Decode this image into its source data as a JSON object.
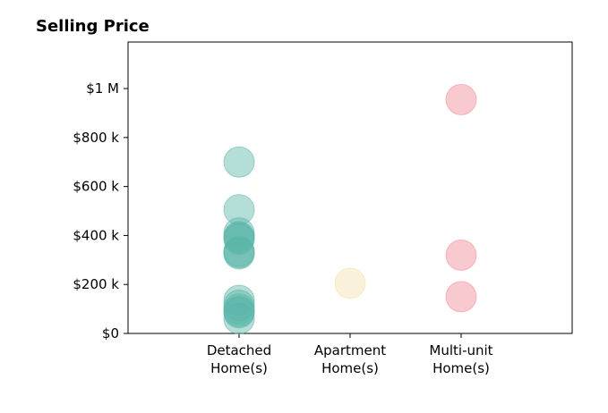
{
  "chart_data": {
    "type": "scatter",
    "title": "Selling Price",
    "xlabel": "",
    "ylabel": "",
    "categories": [
      [
        "Detached",
        "Home(s)"
      ],
      [
        "Apartment",
        "Home(s)"
      ],
      [
        "Multi-unit",
        "Home(s)"
      ]
    ],
    "xlim": [
      -1,
      3
    ],
    "ylim": [
      0,
      1190000
    ],
    "yticks": [
      0,
      200000,
      400000,
      600000,
      800000,
      1000000
    ],
    "ytick_labels": [
      "$0",
      "$200 k",
      "$400 k",
      "$600 k",
      "$800 k",
      "$1 M"
    ],
    "grid": false,
    "legend": "none",
    "series": [
      {
        "category_index": 0,
        "color": "#5bb5a8",
        "values": [
          700000,
          505000,
          410000,
          395000,
          390000,
          385000,
          335000,
          330000,
          325000,
          135000,
          115000,
          100000,
          90000,
          85000,
          60000
        ]
      },
      {
        "category_index": 1,
        "color": "#f5dfad",
        "values": [
          205000
        ]
      },
      {
        "category_index": 2,
        "color": "#f08a95",
        "values": [
          955000,
          320000,
          150000
        ]
      }
    ]
  }
}
